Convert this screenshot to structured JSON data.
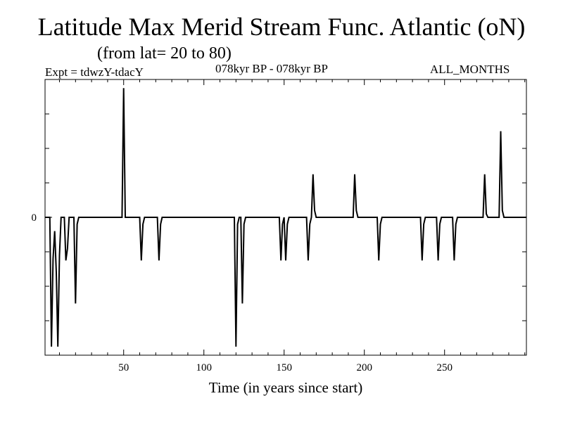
{
  "chart_data": {
    "type": "line",
    "title": "Latitude Max Merid Stream Func. Atlantic (oN)",
    "subtitle": "(from lat= 20 to 80)",
    "experiment_label": "Expt = tdwzY-tdacY",
    "period_label": "078kyr BP - 078kyr BP",
    "months_label": "ALL_MONTHS",
    "xlabel": "Time (in years since start)",
    "ylabel": "",
    "xlim": [
      1,
      301
    ],
    "ylim": [
      -4,
      4
    ],
    "x_ticks": [
      50,
      100,
      150,
      200,
      250
    ],
    "y_tick_labels": [
      {
        "value": 0,
        "label": "0"
      }
    ],
    "y_minor_ticks": [
      -3,
      -2,
      -1,
      1,
      2,
      3
    ],
    "x_minor_step": 10,
    "grid": false,
    "series": [
      {
        "name": "tdwzY-tdacY",
        "x": [
          1,
          4,
          5,
          6,
          7,
          8,
          9,
          10,
          11,
          12,
          13,
          14,
          15,
          16,
          17,
          18,
          19,
          20,
          21,
          22,
          23,
          24,
          49,
          50,
          51,
          52,
          60,
          61,
          62,
          63,
          71,
          72,
          73,
          74,
          119,
          120,
          121,
          122,
          123,
          124,
          125,
          126,
          127,
          147,
          148,
          149,
          150,
          151,
          152,
          153,
          164,
          165,
          166,
          167,
          168,
          169,
          170,
          193,
          194,
          195,
          196,
          208,
          209,
          210,
          211,
          235,
          236,
          237,
          238,
          245,
          246,
          247,
          248,
          255,
          256,
          257,
          258,
          273,
          274,
          275,
          276,
          277,
          284,
          285,
          286,
          287,
          297,
          301
        ],
        "y": [
          0,
          0,
          -3.75,
          -1.2,
          -0.4,
          -1.6,
          -3.75,
          -1.1,
          0,
          0,
          0,
          -1.25,
          -0.9,
          0,
          0,
          0,
          0,
          -2.5,
          -0.2,
          0,
          0,
          0,
          0,
          3.75,
          0,
          0,
          0,
          -1.25,
          -0.2,
          0,
          0,
          -1.25,
          -0.2,
          0,
          0,
          -3.75,
          -0.2,
          0,
          0,
          -2.5,
          -0.2,
          0,
          0,
          0,
          -1.25,
          -0.2,
          0,
          -1.25,
          -0.2,
          0,
          0,
          -1.25,
          -0.2,
          0,
          1.25,
          0.2,
          0,
          0,
          1.25,
          0.2,
          0,
          0,
          -1.25,
          -0.2,
          0,
          0,
          -1.25,
          -0.2,
          0,
          0,
          -1.25,
          -0.2,
          0,
          0,
          -1.25,
          -0.2,
          0,
          0,
          0,
          1.25,
          0.1,
          0,
          0,
          2.5,
          0.2,
          0,
          0,
          0
        ]
      }
    ]
  }
}
